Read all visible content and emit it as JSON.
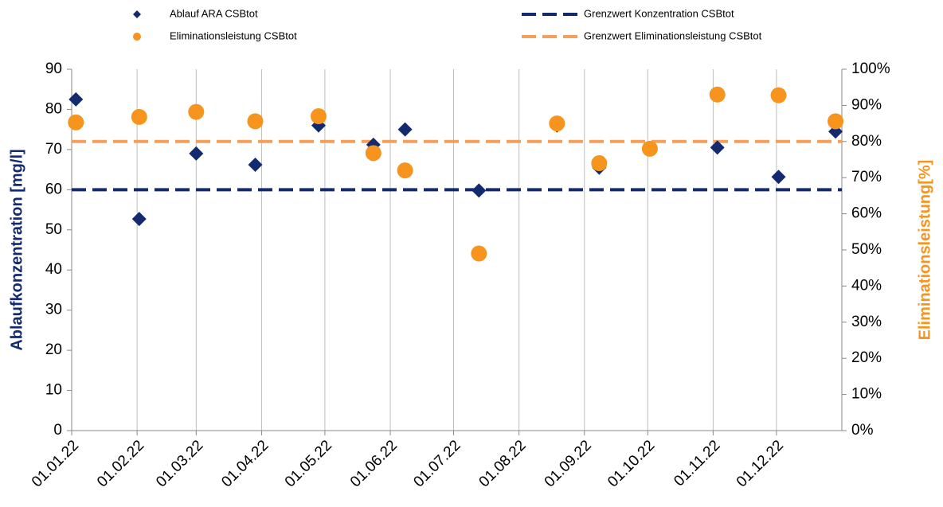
{
  "chart_data": {
    "type": "scatter",
    "x": [
      "03.01.22",
      "02.02.22",
      "01.03.22",
      "29.03.22",
      "28.04.22",
      "24.05.22",
      "08.06.22",
      "13.07.22",
      "19.08.22",
      "08.09.22",
      "02.10.22",
      "03.11.22",
      "02.12.22",
      "29.12.22"
    ],
    "xlim": [
      "01.01.22",
      "01.01.23"
    ],
    "xticks": [
      "01.01.22",
      "01.02.22",
      "01.03.22",
      "01.04.22",
      "01.05.22",
      "01.06.22",
      "01.07.22",
      "01.08.22",
      "01.09.22",
      "01.10.22",
      "01.11.22",
      "01.12.22"
    ],
    "grid": "x",
    "ylabel": "Ablaufkonzentration [mg/l]",
    "ylim": [
      0,
      90
    ],
    "yticks": [
      0,
      10,
      20,
      30,
      40,
      50,
      60,
      70,
      80,
      90
    ],
    "y2label": "Eliminationsleistung[%]",
    "y2lim": [
      0,
      100
    ],
    "y2ticks": [
      {
        "value": 0,
        "label": "0%"
      },
      {
        "value": 10,
        "label": "10%"
      },
      {
        "value": 20,
        "label": "20%"
      },
      {
        "value": 30,
        "label": "30%"
      },
      {
        "value": 40,
        "label": "40%"
      },
      {
        "value": 50,
        "label": "50%"
      },
      {
        "value": 60,
        "label": "60%"
      },
      {
        "value": 70,
        "label": "70%"
      },
      {
        "value": 80,
        "label": "80%"
      },
      {
        "value": 90,
        "label": "90%"
      },
      {
        "value": 100,
        "label": "100%"
      }
    ],
    "series": [
      {
        "name": "Ablauf ARA CSBtot",
        "color": "#132a6e",
        "marker": "diamond",
        "values": [
          82.5,
          52.7,
          69,
          66.2,
          76,
          71.2,
          75,
          59.8,
          76,
          65.5,
          70,
          70.5,
          63.2,
          74.5
        ]
      },
      {
        "name": "Eliminationsleistung CSBtot",
        "color": "#f7941d",
        "marker": "circle",
        "axis": "y2",
        "values": [
          85.3,
          86.8,
          88.2,
          85.6,
          87,
          76.8,
          72,
          49,
          85,
          74,
          78,
          93,
          92.8,
          85.6
        ]
      }
    ],
    "reference_lines": [
      {
        "name": "Grenzwert Konzentration CSBtot",
        "color": "#132a6e",
        "value": 60
      },
      {
        "name": "Grenzwert Eliminationsleistung CSBtot",
        "color": "#f5a05a",
        "value": 80,
        "axis": "y2"
      }
    ]
  }
}
